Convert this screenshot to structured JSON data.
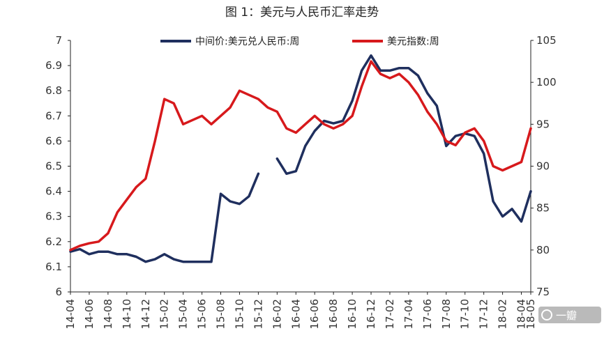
{
  "chart_data": {
    "type": "line",
    "title": "图 1：美元与人民币汇率走势",
    "x": [
      "14-04",
      "14-05",
      "14-06",
      "14-07",
      "14-08",
      "14-09",
      "14-10",
      "14-11",
      "14-12",
      "15-01",
      "15-02",
      "15-03",
      "15-04",
      "15-05",
      "15-06",
      "15-07",
      "15-08",
      "15-09",
      "15-10",
      "15-11",
      "15-12",
      "16-01",
      "16-02",
      "16-03",
      "16-04",
      "16-05",
      "16-06",
      "16-07",
      "16-08",
      "16-09",
      "16-10",
      "16-11",
      "16-12",
      "17-01",
      "17-02",
      "17-03",
      "17-04",
      "17-05",
      "17-06",
      "17-07",
      "17-08",
      "17-09",
      "17-10",
      "17-11",
      "17-12",
      "18-01",
      "18-02",
      "18-03",
      "18-04",
      "18-05"
    ],
    "x_tick_labels": [
      "14-04",
      "14-06",
      "14-08",
      "14-10",
      "14-12",
      "15-02",
      "15-04",
      "15-06",
      "15-08",
      "15-10",
      "15-12",
      "16-02",
      "16-04",
      "16-06",
      "16-08",
      "16-10",
      "16-12",
      "17-02",
      "17-04",
      "17-06",
      "17-08",
      "17-10",
      "17-12",
      "18-02",
      "18-04",
      "18-05"
    ],
    "y_left": {
      "min": 6.0,
      "max": 7.0,
      "ticks": [
        "6",
        "6.1",
        "6.2",
        "6.3",
        "6.4",
        "6.5",
        "6.6",
        "6.7",
        "6.8",
        "6.9",
        "7"
      ]
    },
    "y_right": {
      "min": 75,
      "max": 105,
      "ticks": [
        "75",
        "80",
        "85",
        "90",
        "95",
        "100",
        "105"
      ]
    },
    "grid": false,
    "legend_placement": "top",
    "series": [
      {
        "name": "中间价:美元兑人民币:周",
        "axis": "left",
        "color": "#1f2f5e",
        "values": [
          6.16,
          6.17,
          6.15,
          6.16,
          6.16,
          6.15,
          6.15,
          6.14,
          6.12,
          6.13,
          6.15,
          6.13,
          6.12,
          6.12,
          6.12,
          6.12,
          6.39,
          6.36,
          6.35,
          6.38,
          6.47,
          null,
          6.53,
          6.47,
          6.48,
          6.58,
          6.64,
          6.68,
          6.67,
          6.68,
          6.76,
          6.88,
          6.94,
          6.88,
          6.88,
          6.89,
          6.89,
          6.86,
          6.79,
          6.74,
          6.58,
          6.62,
          6.63,
          6.62,
          6.55,
          6.36,
          6.3,
          6.33,
          6.28,
          6.4
        ]
      },
      {
        "name": "美元指数:周",
        "axis": "right",
        "color": "#d7191c",
        "values": [
          80.0,
          80.5,
          80.8,
          81.0,
          82.0,
          84.5,
          86.0,
          87.5,
          88.5,
          93.0,
          98.0,
          97.5,
          95.0,
          95.5,
          96.0,
          95.0,
          96.0,
          97.0,
          99.0,
          98.5,
          98.0,
          97.0,
          96.5,
          94.5,
          94.0,
          95.0,
          96.0,
          95.0,
          94.5,
          95.0,
          96.0,
          99.5,
          102.5,
          101.0,
          100.5,
          101.0,
          100.0,
          98.5,
          96.5,
          95.0,
          93.0,
          92.5,
          94.0,
          94.5,
          93.0,
          90.0,
          89.5,
          90.0,
          90.5,
          94.5
        ]
      }
    ]
  },
  "watermark": {
    "text": "一瓣"
  }
}
